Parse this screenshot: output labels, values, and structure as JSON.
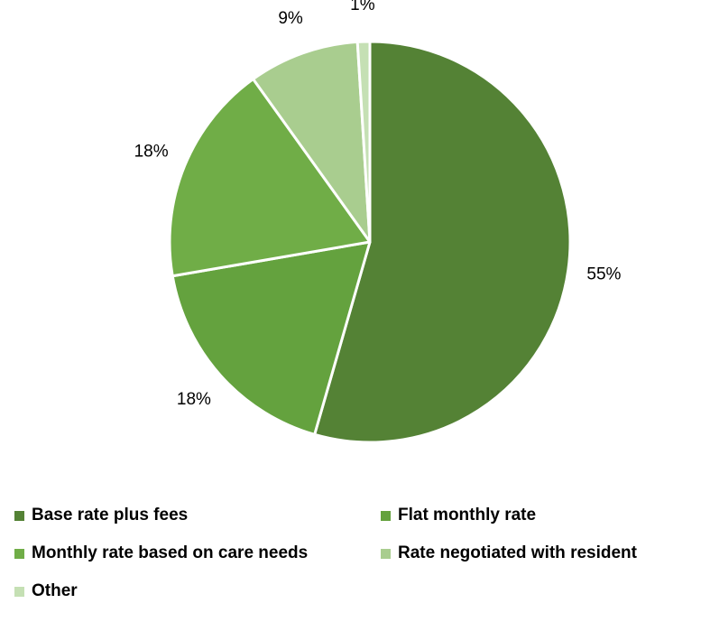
{
  "chart_data": {
    "type": "pie",
    "categories": [
      "Base rate plus fees",
      "Flat monthly rate",
      "Monthly rate based on care needs",
      "Rate negotiated with resident",
      "Other"
    ],
    "values": [
      55,
      18,
      18,
      9,
      1
    ],
    "data_labels": [
      "55%",
      "18%",
      "18%",
      "9%",
      "1%"
    ],
    "colors": [
      "#548235",
      "#64A23E",
      "#70AD47",
      "#A9CD8F",
      "#C5E0B4"
    ],
    "start_angle_deg": 0,
    "direction": "clockwise",
    "legend_position": "bottom",
    "title": "",
    "xlabel": "",
    "ylabel": ""
  }
}
